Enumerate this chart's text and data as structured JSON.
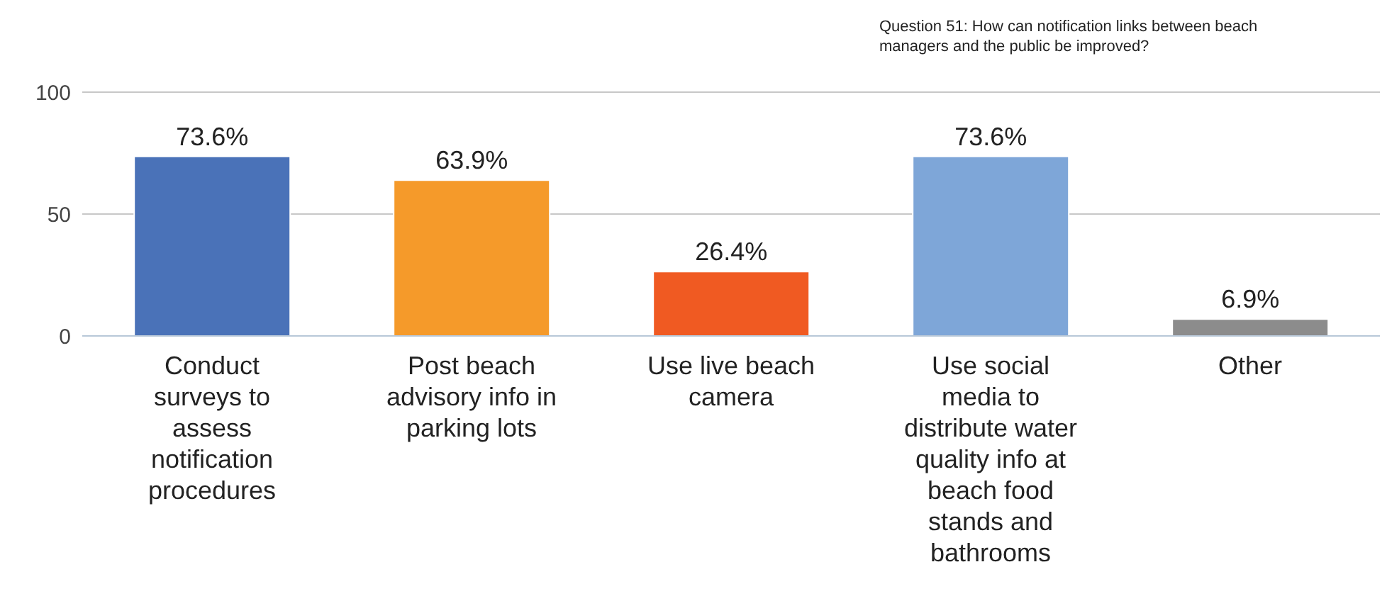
{
  "chart_data": {
    "type": "bar",
    "title": "Question 51: How can notification links between beach managers and the public be improved?",
    "categories": [
      "Conduct surveys to assess notification procedures",
      "Post beach advisory info in parking lots",
      "Use live beach camera",
      "Use social media to distribute water quality info at beach food stands and bathrooms",
      "Other"
    ],
    "values": [
      73.6,
      63.9,
      26.4,
      73.6,
      6.9
    ],
    "value_labels": [
      "73.6%",
      "63.9%",
      "26.4%",
      "73.6%",
      "6.9%"
    ],
    "colors": [
      "#4a72b8",
      "#f59a2a",
      "#f05a22",
      "#7ea6d8",
      "#8c8c8c"
    ],
    "ylim": [
      0,
      100
    ],
    "yticks": [
      0,
      50,
      100
    ],
    "grid": "y",
    "legend": false
  }
}
